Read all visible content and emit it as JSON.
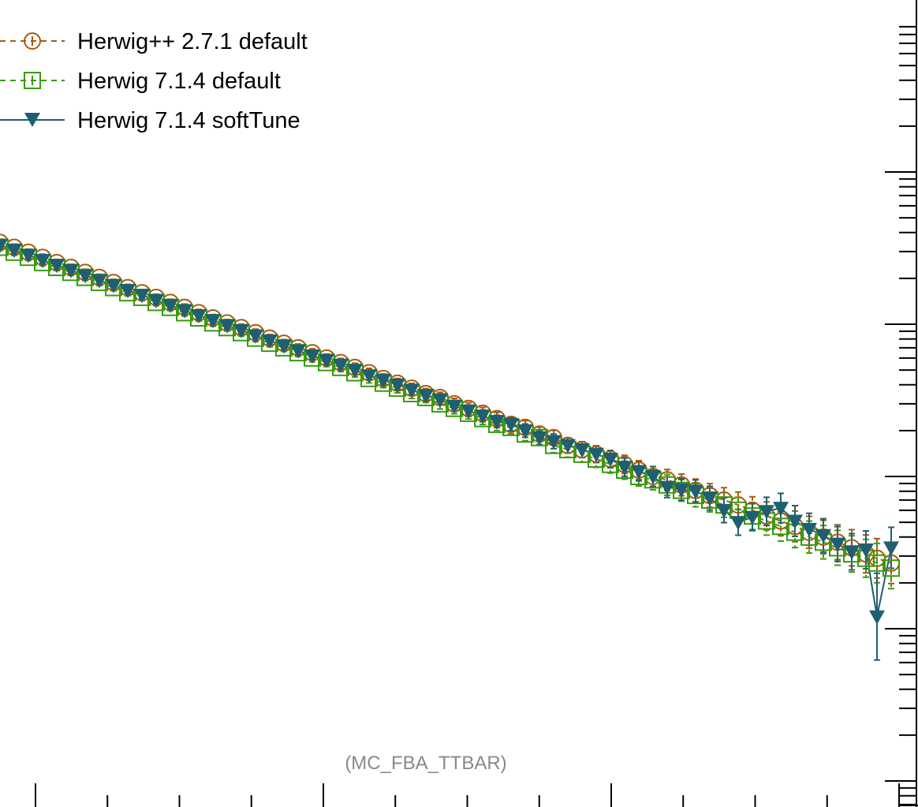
{
  "chart_data": {
    "type": "line",
    "title": "",
    "xlabel": "",
    "ylabel": "",
    "y_scale": "log",
    "xlim": [
      0,
      1164
    ],
    "ylim": [
      1e-05,
      10
    ],
    "annotation": "(MC_FBA_TTBAR)",
    "legend_position": "top-left",
    "series": [
      {
        "name": "Herwig++ 2.7.1 default",
        "color": "#a85a10",
        "line_style": "dashed",
        "marker": "circle-open",
        "x": [
          0,
          18,
          36,
          54,
          72,
          90,
          108,
          126,
          144,
          162,
          180,
          198,
          216,
          234,
          252,
          270,
          288,
          306,
          324,
          342,
          360,
          378,
          396,
          414,
          432,
          450,
          468,
          486,
          504,
          522,
          540,
          558,
          576,
          594,
          612,
          630,
          648,
          666,
          684,
          702,
          720,
          738,
          756,
          774,
          792,
          810,
          828,
          846,
          864,
          882,
          900,
          918,
          936,
          954,
          972,
          990,
          1008,
          1026,
          1044,
          1062,
          1080,
          1098,
          1112,
          1130
        ],
        "y": [
          3.45,
          3.2,
          2.97,
          2.75,
          2.54,
          2.36,
          2.19,
          2.03,
          1.88,
          1.74,
          1.61,
          1.5,
          1.39,
          1.29,
          1.19,
          1.1,
          1.02,
          0.95,
          0.88,
          0.81,
          0.75,
          0.7,
          0.65,
          0.6,
          0.56,
          0.52,
          0.48,
          0.44,
          0.41,
          0.38,
          0.35,
          0.33,
          0.3,
          0.28,
          0.26,
          0.24,
          0.22,
          0.21,
          0.19,
          0.18,
          0.16,
          0.15,
          0.14,
          0.13,
          0.12,
          0.11,
          0.1,
          0.095,
          0.088,
          0.081,
          0.075,
          0.07,
          0.065,
          0.06,
          0.055,
          0.051,
          0.047,
          0.043,
          0.04,
          0.037,
          0.034,
          0.031,
          0.029,
          0.027
        ]
      },
      {
        "name": "Herwig 7.1.4 default",
        "color": "#3a9a10",
        "line_style": "dashed",
        "marker": "square-open",
        "x": [
          0,
          18,
          36,
          54,
          72,
          90,
          108,
          126,
          144,
          162,
          180,
          198,
          216,
          234,
          252,
          270,
          288,
          306,
          324,
          342,
          360,
          378,
          396,
          414,
          432,
          450,
          468,
          486,
          504,
          522,
          540,
          558,
          576,
          594,
          612,
          630,
          648,
          666,
          684,
          702,
          720,
          738,
          756,
          774,
          792,
          810,
          828,
          846,
          864,
          882,
          900,
          918,
          936,
          954,
          972,
          990,
          1008,
          1026,
          1044,
          1062,
          1080,
          1098,
          1112,
          1130
        ],
        "y": [
          3.2,
          2.97,
          2.75,
          2.54,
          2.36,
          2.19,
          2.03,
          1.88,
          1.74,
          1.61,
          1.5,
          1.39,
          1.29,
          1.19,
          1.1,
          1.02,
          0.95,
          0.88,
          0.81,
          0.75,
          0.7,
          0.65,
          0.6,
          0.56,
          0.52,
          0.48,
          0.44,
          0.41,
          0.38,
          0.35,
          0.33,
          0.3,
          0.28,
          0.26,
          0.24,
          0.22,
          0.21,
          0.19,
          0.18,
          0.16,
          0.15,
          0.14,
          0.13,
          0.12,
          0.11,
          0.1,
          0.095,
          0.088,
          0.081,
          0.075,
          0.07,
          0.065,
          0.06,
          0.055,
          0.051,
          0.047,
          0.043,
          0.04,
          0.037,
          0.034,
          0.031,
          0.029,
          0.027,
          0.025
        ]
      },
      {
        "name": "Herwig 7.1.4 softTune",
        "color": "#1f5f70",
        "line_style": "solid",
        "marker": "triangle-down-filled",
        "x": [
          0,
          18,
          36,
          54,
          72,
          90,
          108,
          126,
          144,
          162,
          180,
          198,
          216,
          234,
          252,
          270,
          288,
          306,
          324,
          342,
          360,
          378,
          396,
          414,
          432,
          450,
          468,
          486,
          504,
          522,
          540,
          558,
          576,
          594,
          612,
          630,
          648,
          666,
          684,
          702,
          720,
          738,
          756,
          774,
          792,
          810,
          828,
          846,
          864,
          882,
          900,
          918,
          936,
          954,
          972,
          990,
          1008,
          1026,
          1044,
          1062,
          1080,
          1098,
          1112,
          1130
        ],
        "y": [
          3.3,
          3.07,
          2.84,
          2.63,
          2.44,
          2.26,
          2.09,
          1.94,
          1.8,
          1.67,
          1.55,
          1.43,
          1.33,
          1.23,
          1.14,
          1.06,
          0.98,
          0.91,
          0.84,
          0.78,
          0.72,
          0.67,
          0.62,
          0.58,
          0.54,
          0.5,
          0.46,
          0.43,
          0.4,
          0.37,
          0.34,
          0.32,
          0.29,
          0.27,
          0.25,
          0.23,
          0.22,
          0.2,
          0.18,
          0.17,
          0.16,
          0.15,
          0.14,
          0.13,
          0.115,
          0.108,
          0.1,
          0.085,
          0.082,
          0.08,
          0.072,
          0.06,
          0.05,
          0.054,
          0.059,
          0.062,
          0.051,
          0.045,
          0.041,
          0.036,
          0.032,
          0.033,
          0.012,
          0.034
        ]
      }
    ]
  }
}
